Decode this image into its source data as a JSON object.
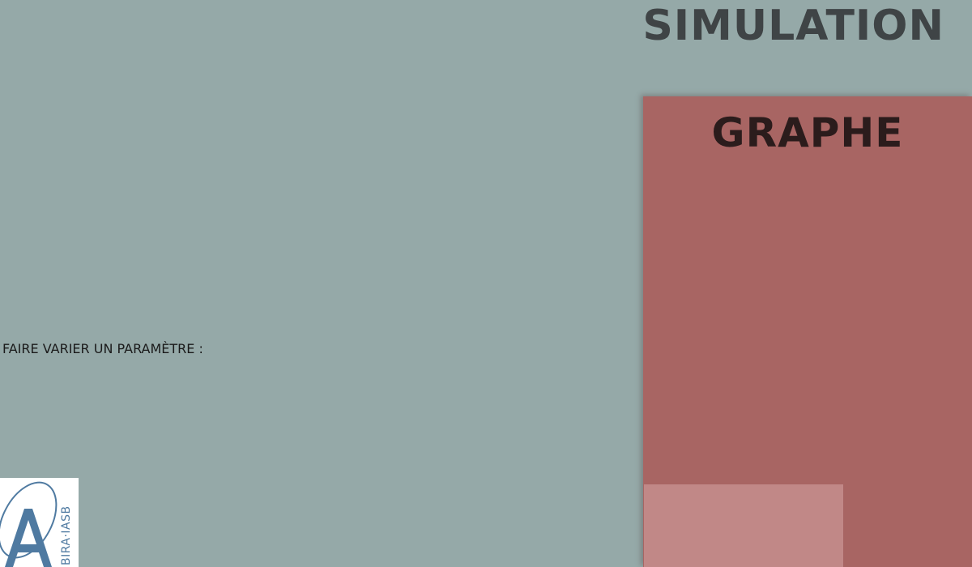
{
  "app": {
    "title": "Simulation"
  },
  "controls": {
    "vary_parameter_label": "Faire varier un paramètre :"
  },
  "logo": {
    "text": "BIRA·IASB"
  },
  "graph": {
    "title": "Graphe"
  },
  "colors": {
    "background": "#95a9a8",
    "panel": "#a86563",
    "graph_area": "#c18887",
    "title_text": "#3f4446",
    "logo_accent": "#4f7aa1"
  }
}
